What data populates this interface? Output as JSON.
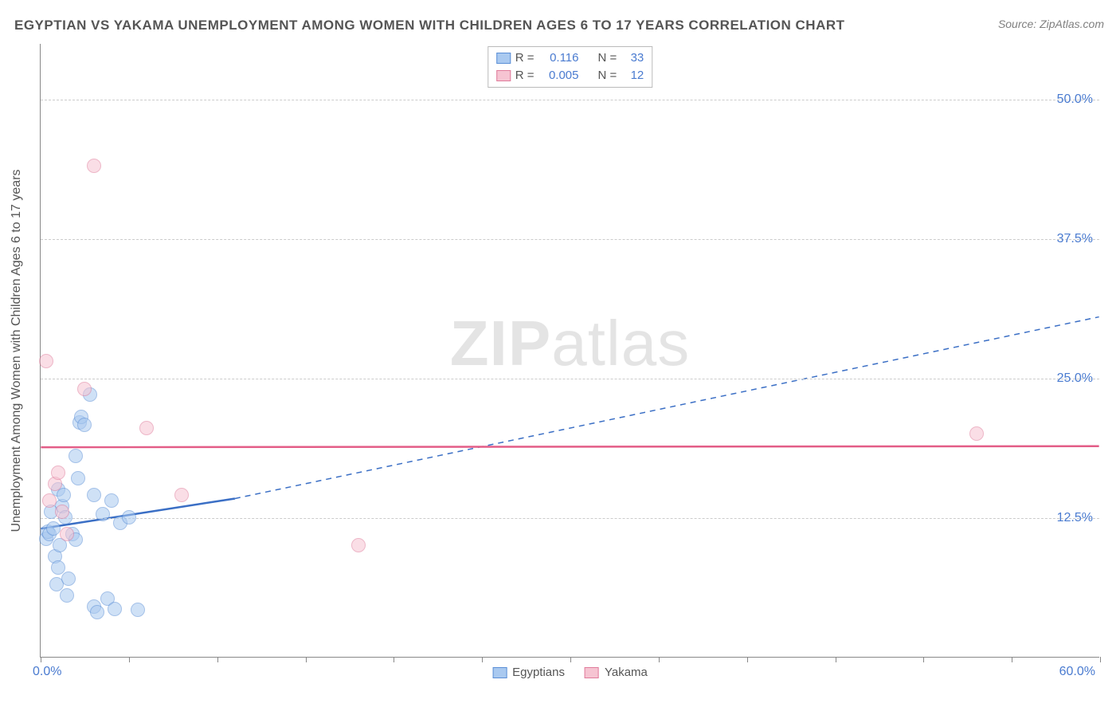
{
  "title": "EGYPTIAN VS YAKAMA UNEMPLOYMENT AMONG WOMEN WITH CHILDREN AGES 6 TO 17 YEARS CORRELATION CHART",
  "source": "Source: ZipAtlas.com",
  "watermark_bold": "ZIP",
  "watermark_thin": "atlas",
  "y_axis_title": "Unemployment Among Women with Children Ages 6 to 17 years",
  "chart": {
    "type": "scatter",
    "background_color": "#ffffff",
    "grid_color": "#cccccc",
    "axis_color": "#888888",
    "xlim": [
      0,
      60
    ],
    "ylim": [
      0,
      55
    ],
    "x_ticks": [
      0,
      5,
      10,
      15,
      20,
      25,
      30,
      35,
      40,
      45,
      50,
      55,
      60
    ],
    "y_grid": [
      12.5,
      25.0,
      37.5,
      50.0
    ],
    "y_tick_labels": [
      "12.5%",
      "25.0%",
      "37.5%",
      "50.0%"
    ],
    "x_origin_label": "0.0%",
    "x_max_label": "60.0%",
    "marker_radius": 9,
    "marker_opacity": 0.55,
    "series": [
      {
        "name": "Egyptians",
        "fill": "#a9c9f0",
        "stroke": "#5b8fd6",
        "R": "0.116",
        "N": "33",
        "points": [
          [
            0.3,
            10.6
          ],
          [
            0.4,
            11.2
          ],
          [
            0.5,
            11.0
          ],
          [
            0.8,
            9.0
          ],
          [
            1.0,
            8.0
          ],
          [
            1.2,
            13.5
          ],
          [
            1.4,
            12.5
          ],
          [
            1.5,
            5.5
          ],
          [
            1.8,
            11.0
          ],
          [
            2.0,
            18.0
          ],
          [
            2.2,
            21.0
          ],
          [
            2.3,
            21.5
          ],
          [
            2.5,
            20.8
          ],
          [
            3.0,
            4.5
          ],
          [
            3.2,
            4.0
          ],
          [
            3.5,
            12.8
          ],
          [
            3.8,
            5.2
          ],
          [
            4.0,
            14.0
          ],
          [
            4.2,
            4.3
          ],
          [
            4.5,
            12.0
          ],
          [
            5.0,
            12.5
          ],
          [
            5.5,
            4.2
          ],
          [
            2.8,
            23.5
          ],
          [
            1.0,
            15.0
          ],
          [
            1.3,
            14.5
          ],
          [
            0.6,
            13.0
          ],
          [
            0.9,
            6.5
          ],
          [
            1.6,
            7.0
          ],
          [
            2.1,
            16.0
          ],
          [
            3.0,
            14.5
          ],
          [
            1.1,
            10.0
          ],
          [
            0.7,
            11.5
          ],
          [
            2.0,
            10.5
          ]
        ],
        "trendline": {
          "color": "#3b6fc5",
          "width": 2.5,
          "solid_from": [
            0,
            11.5
          ],
          "solid_to": [
            11,
            14.2
          ],
          "dashed_to": [
            60,
            30.5
          ]
        }
      },
      {
        "name": "Yakama",
        "fill": "#f6c4d2",
        "stroke": "#e07b9b",
        "R": "0.005",
        "N": "12",
        "points": [
          [
            0.3,
            26.5
          ],
          [
            0.5,
            14.0
          ],
          [
            0.8,
            15.5
          ],
          [
            1.0,
            16.5
          ],
          [
            1.2,
            13.0
          ],
          [
            1.5,
            11.0
          ],
          [
            2.5,
            24.0
          ],
          [
            3.0,
            44.0
          ],
          [
            6.0,
            20.5
          ],
          [
            8.0,
            14.5
          ],
          [
            18.0,
            10.0
          ],
          [
            53.0,
            20.0
          ]
        ],
        "trendline": {
          "color": "#e35d87",
          "width": 2.5,
          "solid_from": [
            0,
            18.8
          ],
          "solid_to": [
            60,
            18.9
          ]
        }
      }
    ]
  },
  "legend_top": [
    {
      "swatch_fill": "#a9c9f0",
      "swatch_stroke": "#5b8fd6",
      "r_label": "R =",
      "r_val": "0.116",
      "n_label": "N =",
      "n_val": "33"
    },
    {
      "swatch_fill": "#f6c4d2",
      "swatch_stroke": "#e07b9b",
      "r_label": "R =",
      "r_val": "0.005",
      "n_label": "N =",
      "n_val": "12"
    }
  ],
  "legend_bottom": [
    {
      "swatch_fill": "#a9c9f0",
      "swatch_stroke": "#5b8fd6",
      "label": "Egyptians"
    },
    {
      "swatch_fill": "#f6c4d2",
      "swatch_stroke": "#e07b9b",
      "label": "Yakama"
    }
  ]
}
